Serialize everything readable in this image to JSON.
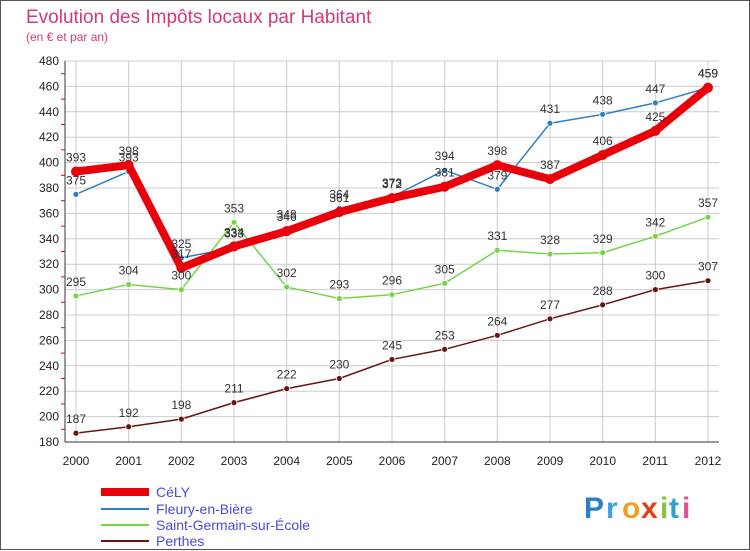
{
  "chart_data": {
    "type": "line",
    "title": "Evolution des Impôts locaux par Habitant",
    "subtitle": "(en € et par an)",
    "xlabel": "",
    "ylabel": "",
    "ylim": [
      180,
      480
    ],
    "y_ticks": [
      180,
      200,
      220,
      240,
      260,
      280,
      300,
      320,
      340,
      360,
      380,
      400,
      420,
      440,
      460,
      480
    ],
    "x": [
      "2000",
      "2001",
      "2002",
      "2003",
      "2004",
      "2005",
      "2006",
      "2007",
      "2008",
      "2009",
      "2010",
      "2011",
      "2012"
    ],
    "grid": true,
    "legend_position": "bottom-left",
    "series": [
      {
        "name": "CéLY",
        "color": "#e8000b",
        "values": [
          393,
          398,
          317,
          334,
          346,
          361,
          372,
          381,
          398,
          387,
          406,
          425,
          459
        ]
      },
      {
        "name": "Fleury-en-Bière",
        "color": "#2f7fc1",
        "values": [
          375,
          393,
          325,
          333,
          348,
          364,
          373,
          394,
          379,
          431,
          438,
          447,
          459
        ]
      },
      {
        "name": "Saint-Germain-sur-École",
        "color": "#77d44a",
        "values": [
          295,
          304,
          300,
          353,
          302,
          293,
          296,
          305,
          331,
          328,
          329,
          342,
          357
        ]
      },
      {
        "name": "Perthes",
        "color": "#6b1313",
        "values": [
          187,
          192,
          198,
          211,
          222,
          230,
          245,
          253,
          264,
          277,
          288,
          300,
          307
        ]
      }
    ]
  },
  "logo": {
    "letters": [
      "P",
      "r",
      "o",
      "x",
      "i",
      "t",
      "i"
    ],
    "colors": [
      "#2f7fc1",
      "#3aa0e0",
      "#f0a020",
      "#e04020",
      "#88c040",
      "#30a0d0",
      "#e05090"
    ]
  },
  "colors": {
    "title": "#d23a7a",
    "grid": "#cccccc",
    "axis": "#333333"
  }
}
